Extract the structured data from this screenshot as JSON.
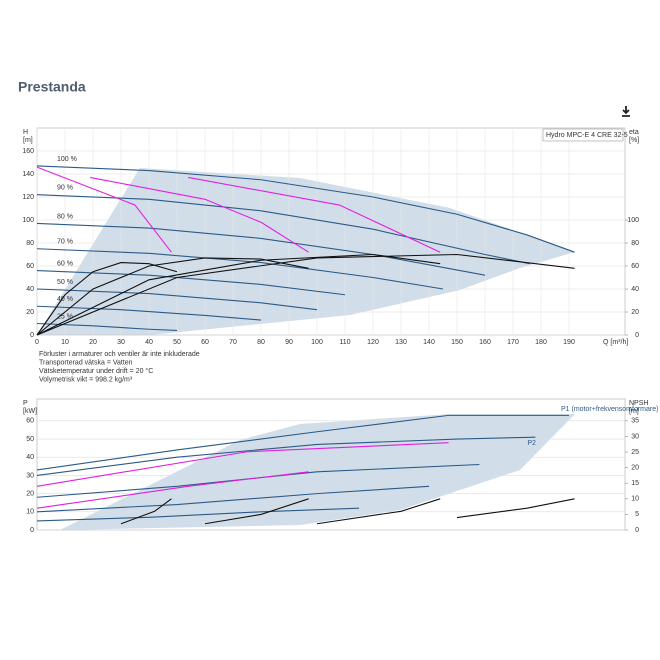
{
  "header": {
    "title": "Prestanda"
  },
  "chart_data": [
    {
      "type": "line",
      "ylabel": [
        "H",
        "[m]"
      ],
      "y2label": [
        "eta",
        "[%]"
      ],
      "xlabel": "Q [m³/h]",
      "model": "Hydro MPC-E 4 CRE 32-5",
      "grid": true,
      "xlim": [
        0,
        210
      ],
      "xticks": [
        0,
        10,
        20,
        30,
        40,
        50,
        60,
        70,
        80,
        90,
        100,
        110,
        120,
        130,
        140,
        150,
        160,
        170,
        180,
        190
      ],
      "ylim": [
        0,
        180
      ],
      "yticks": [
        0,
        20,
        40,
        60,
        80,
        100,
        120,
        140,
        160
      ],
      "y2lim": [
        0,
        180
      ],
      "y2ticks": [
        0,
        20,
        40,
        60,
        80,
        100
      ],
      "notes": [
        "Förluster i armaturer och ventiler är inte inkluderade",
        "Transporterad vätska = Vatten",
        "Vätsketemperatur under drift = 20 °C",
        "Volymetrisk vikt = 998.2 kg/m³"
      ],
      "series": [
        {
          "label": "100 %",
          "color": "#2c5a87",
          "x": [
            0,
            40,
            80,
            120,
            150,
            175,
            192
          ],
          "values": [
            147,
            143,
            135,
            120,
            105,
            87,
            72
          ]
        },
        {
          "label": "90 %",
          "color": "#2c5a87",
          "x": [
            0,
            40,
            80,
            120,
            160,
            176
          ],
          "values": [
            122,
            118,
            108,
            92,
            70,
            62
          ]
        },
        {
          "label": "80 %",
          "color": "#2c5a87",
          "x": [
            0,
            40,
            80,
            120,
            160
          ],
          "values": [
            97,
            93,
            84,
            70,
            52
          ]
        },
        {
          "label": "70 %",
          "color": "#2c5a87",
          "x": [
            0,
            40,
            80,
            120,
            145
          ],
          "values": [
            75,
            71,
            63,
            50,
            40
          ]
        },
        {
          "label": "60 %",
          "color": "#2c5a87",
          "x": [
            0,
            40,
            80,
            110
          ],
          "values": [
            56,
            52,
            44,
            35
          ]
        },
        {
          "label": "50 %",
          "color": "#2c5a87",
          "x": [
            0,
            40,
            80,
            100
          ],
          "values": [
            40,
            36,
            28,
            22
          ]
        },
        {
          "label": "40 %",
          "color": "#2c5a87",
          "x": [
            0,
            30,
            60,
            80
          ],
          "values": [
            25,
            22,
            17,
            13
          ]
        },
        {
          "label": "25 %",
          "color": "#2c5a87",
          "x": [
            0,
            20,
            40,
            50
          ],
          "values": [
            10,
            8,
            5,
            4
          ]
        },
        {
          "color": "#e020e0",
          "x": [
            0,
            35,
            48
          ],
          "values": [
            146,
            113,
            72
          ]
        },
        {
          "color": "#e020e0",
          "x": [
            19,
            60,
            80,
            97
          ],
          "values": [
            137,
            118,
            98,
            72
          ]
        },
        {
          "color": "#e020e0",
          "x": [
            54,
            108,
            144
          ],
          "values": [
            137,
            113,
            72
          ]
        },
        {
          "color": "#111111",
          "axis": "y2",
          "x": [
            0,
            10,
            20,
            30,
            40,
            50
          ],
          "values": [
            0,
            35,
            55,
            63,
            62,
            55
          ]
        },
        {
          "color": "#111111",
          "axis": "y2",
          "x": [
            0,
            20,
            40,
            60,
            80,
            97
          ],
          "values": [
            0,
            40,
            60,
            67,
            66,
            58
          ]
        },
        {
          "color": "#111111",
          "axis": "y2",
          "x": [
            0,
            40,
            80,
            120,
            144
          ],
          "values": [
            0,
            48,
            65,
            70,
            62
          ]
        },
        {
          "color": "#111111",
          "axis": "y2",
          "x": [
            0,
            50,
            100,
            150,
            192
          ],
          "values": [
            0,
            50,
            67,
            70,
            58
          ]
        }
      ]
    },
    {
      "type": "line",
      "ylabel": [
        "P",
        "[kW]"
      ],
      "y2label": [
        "NPSH",
        "[m]"
      ],
      "grid": true,
      "xlim": [
        0,
        210
      ],
      "ylim": [
        0,
        72
      ],
      "yticks": [
        0,
        10,
        20,
        30,
        40,
        50,
        60
      ],
      "y2lim": [
        0,
        42
      ],
      "y2ticks": [
        0,
        5,
        10,
        15,
        20,
        25,
        30,
        35
      ],
      "series": [
        {
          "name": "P1 (motor+frekvensomformare)",
          "color": "#2c5a87",
          "x": [
            0,
            50,
            100,
            147,
            190
          ],
          "values": [
            33,
            44,
            54,
            63,
            63
          ]
        },
        {
          "name": "P2",
          "color": "#2c5a87",
          "x": [
            0,
            50,
            100,
            150,
            178
          ],
          "values": [
            30,
            40,
            47,
            50,
            51
          ]
        },
        {
          "color": "#2c5a87",
          "x": [
            0,
            50,
            100,
            158
          ],
          "values": [
            18,
            24,
            32,
            36
          ]
        },
        {
          "color": "#2c5a87",
          "x": [
            0,
            50,
            100,
            140
          ],
          "values": [
            10,
            14,
            20,
            24
          ]
        },
        {
          "color": "#2c5a87",
          "x": [
            0,
            40,
            80,
            115
          ],
          "values": [
            5,
            7,
            10,
            12
          ]
        },
        {
          "color": "#e020e0",
          "x": [
            0,
            75,
            147
          ],
          "values": [
            24,
            43,
            48
          ]
        },
        {
          "color": "#e020e0",
          "x": [
            0,
            54,
            97
          ],
          "values": [
            12,
            24,
            32
          ]
        },
        {
          "color": "#111111",
          "axis": "y2",
          "x": [
            30,
            42,
            48
          ],
          "values": [
            2,
            6,
            10
          ]
        },
        {
          "color": "#111111",
          "axis": "y2",
          "x": [
            60,
            80,
            97
          ],
          "values": [
            2,
            5,
            10
          ]
        },
        {
          "color": "#111111",
          "axis": "y2",
          "x": [
            100,
            130,
            144
          ],
          "values": [
            2,
            6,
            10
          ]
        },
        {
          "color": "#111111",
          "axis": "y2",
          "x": [
            150,
            175,
            192
          ],
          "values": [
            4,
            7,
            10
          ]
        }
      ]
    }
  ]
}
